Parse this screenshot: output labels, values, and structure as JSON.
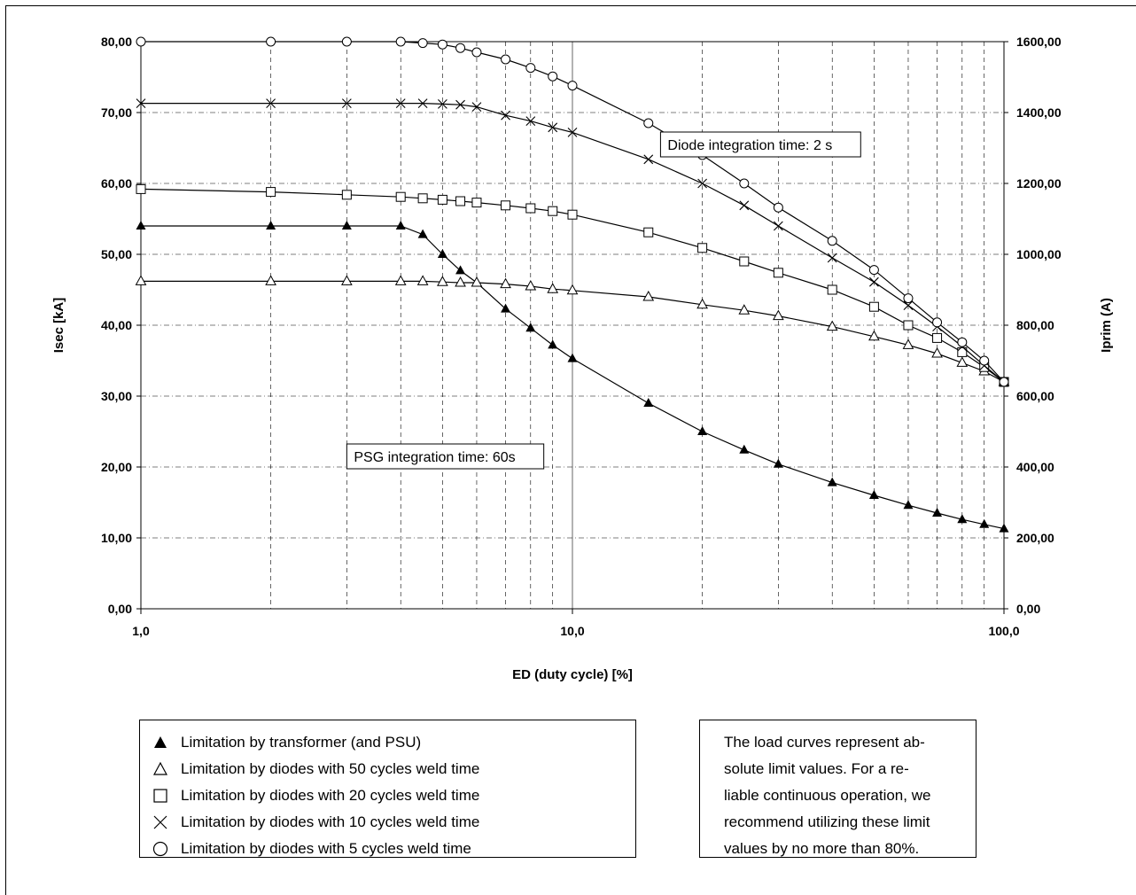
{
  "chart_data": {
    "type": "line",
    "x_scale": "log",
    "xlim": [
      1,
      100
    ],
    "ylim_left": [
      0,
      80
    ],
    "ylim_right": [
      0,
      1600
    ],
    "xlabel": "ED (duty cycle) [%]",
    "ylabel_left": "Isec [kA]",
    "ylabel_right": "Iprim (A)",
    "x_tick_labels": [
      "1,0",
      "10,0",
      "100,0"
    ],
    "y_left_tick_labels": [
      "0,00",
      "10,00",
      "20,00",
      "30,00",
      "40,00",
      "50,00",
      "60,00",
      "70,00",
      "80,00"
    ],
    "y_right_tick_labels": [
      "0,00",
      "200,00",
      "400,00",
      "600,00",
      "800,00",
      "1000,00",
      "1200,00",
      "1400,00",
      "1600,00"
    ],
    "grid": true,
    "series": [
      {
        "name": "Limitation by transformer (and PSU)",
        "marker": "filled-triangle",
        "points": [
          [
            1,
            54
          ],
          [
            2,
            54
          ],
          [
            3,
            54
          ],
          [
            4,
            54
          ],
          [
            4.5,
            52.8
          ],
          [
            5,
            50
          ],
          [
            5.5,
            47.7
          ],
          [
            6,
            46
          ],
          [
            7,
            42.3
          ],
          [
            8,
            39.6
          ],
          [
            9,
            37.2
          ],
          [
            10,
            35.3
          ],
          [
            15,
            29
          ],
          [
            20,
            25
          ],
          [
            25,
            22.4
          ],
          [
            30,
            20.4
          ],
          [
            40,
            17.8
          ],
          [
            50,
            16
          ],
          [
            60,
            14.6
          ],
          [
            70,
            13.5
          ],
          [
            80,
            12.6
          ],
          [
            90,
            11.9
          ],
          [
            100,
            11.3
          ]
        ]
      },
      {
        "name": "Limitation by diodes with 50 cycles weld time",
        "marker": "open-triangle",
        "points": [
          [
            1,
            46.2
          ],
          [
            2,
            46.2
          ],
          [
            3,
            46.2
          ],
          [
            4,
            46.2
          ],
          [
            4.5,
            46.2
          ],
          [
            5,
            46.1
          ],
          [
            5.5,
            46
          ],
          [
            6,
            46
          ],
          [
            7,
            45.8
          ],
          [
            8,
            45.5
          ],
          [
            9,
            45.1
          ],
          [
            10,
            44.9
          ],
          [
            15,
            44
          ],
          [
            20,
            42.9
          ],
          [
            25,
            42.1
          ],
          [
            30,
            41.3
          ],
          [
            40,
            39.8
          ],
          [
            50,
            38.4
          ],
          [
            60,
            37.2
          ],
          [
            70,
            36
          ],
          [
            80,
            34.7
          ],
          [
            90,
            33.5
          ],
          [
            100,
            32
          ]
        ]
      },
      {
        "name": "Limitation by diodes with 20 cycles weld time",
        "marker": "open-square",
        "points": [
          [
            1,
            59.2
          ],
          [
            2,
            58.8
          ],
          [
            3,
            58.4
          ],
          [
            4,
            58.1
          ],
          [
            4.5,
            57.9
          ],
          [
            5,
            57.7
          ],
          [
            5.5,
            57.5
          ],
          [
            6,
            57.3
          ],
          [
            7,
            56.9
          ],
          [
            8,
            56.5
          ],
          [
            9,
            56.1
          ],
          [
            10,
            55.6
          ],
          [
            15,
            53.1
          ],
          [
            20,
            50.9
          ],
          [
            25,
            49
          ],
          [
            30,
            47.4
          ],
          [
            40,
            45
          ],
          [
            50,
            42.6
          ],
          [
            60,
            40
          ],
          [
            70,
            38.2
          ],
          [
            80,
            36.2
          ],
          [
            90,
            34.1
          ],
          [
            100,
            32
          ]
        ]
      },
      {
        "name": "Limitation by diodes with 10 cycles weld time",
        "marker": "cross",
        "points": [
          [
            1,
            71.3
          ],
          [
            2,
            71.3
          ],
          [
            3,
            71.3
          ],
          [
            4,
            71.3
          ],
          [
            4.5,
            71.3
          ],
          [
            5,
            71.2
          ],
          [
            5.5,
            71.1
          ],
          [
            6,
            70.8
          ],
          [
            7,
            69.6
          ],
          [
            8,
            68.8
          ],
          [
            9,
            67.9
          ],
          [
            10,
            67.2
          ],
          [
            15,
            63.4
          ],
          [
            20,
            60
          ],
          [
            25,
            56.9
          ],
          [
            30,
            54
          ],
          [
            40,
            49.5
          ],
          [
            50,
            46.1
          ],
          [
            60,
            42.8
          ],
          [
            70,
            39.8
          ],
          [
            80,
            37
          ],
          [
            90,
            34.3
          ],
          [
            100,
            32
          ]
        ]
      },
      {
        "name": "Limitation by diodes with 5 cycles weld time",
        "marker": "circle",
        "points": [
          [
            1,
            80
          ],
          [
            2,
            80
          ],
          [
            3,
            80
          ],
          [
            4,
            80
          ],
          [
            4.5,
            79.8
          ],
          [
            5,
            79.6
          ],
          [
            5.5,
            79.1
          ],
          [
            6,
            78.5
          ],
          [
            7,
            77.5
          ],
          [
            8,
            76.3
          ],
          [
            9,
            75.1
          ],
          [
            10,
            73.8
          ],
          [
            15,
            68.5
          ],
          [
            20,
            64
          ],
          [
            25,
            60
          ],
          [
            30,
            56.6
          ],
          [
            40,
            51.9
          ],
          [
            50,
            47.8
          ],
          [
            60,
            43.8
          ],
          [
            70,
            40.4
          ],
          [
            80,
            37.6
          ],
          [
            90,
            35
          ],
          [
            100,
            32
          ]
        ]
      }
    ],
    "annotations": [
      {
        "text": "Diode integration time: 2 s",
        "x": 16,
        "y": 65.5
      },
      {
        "text": "PSG integration time: 60s",
        "x": 3,
        "y": 21.5
      }
    ]
  },
  "legend": {
    "items": [
      {
        "label": "Limitation by transformer (and PSU)",
        "marker": "filled-triangle"
      },
      {
        "label": "Limitation by diodes with 50 cycles weld time",
        "marker": "open-triangle"
      },
      {
        "label": "Limitation by diodes with 20 cycles weld time",
        "marker": "open-square"
      },
      {
        "label": "Limitation by diodes with 10 cycles weld time",
        "marker": "cross"
      },
      {
        "label": "Limitation by diodes with 5 cycles weld time",
        "marker": "circle"
      }
    ]
  },
  "note": {
    "lines": [
      "The load curves represent ab-",
      "solute limit values. For a re-",
      "liable continuous operation, we",
      "recommend utilizing these limit",
      "values by no more than 80%."
    ]
  },
  "colors": {
    "line": "#000000",
    "grid": "#000000",
    "background": "#ffffff"
  }
}
